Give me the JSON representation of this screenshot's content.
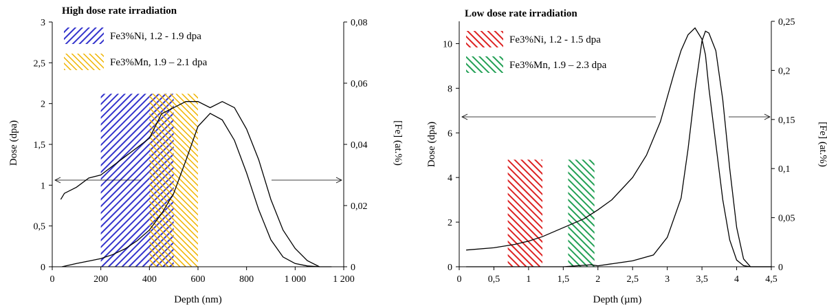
{
  "chart_data": [
    {
      "type": "line",
      "title": "High dose rate irradiation",
      "xlabel": "Depth (nm)",
      "ylabel": "Dose (dpa)",
      "y2label": "[Fe] (at.%)",
      "xlim": [
        0,
        1200
      ],
      "ylim": [
        0,
        3
      ],
      "y2lim": [
        0,
        0.08
      ],
      "xticks": [
        0,
        200,
        400,
        600,
        800,
        1000,
        1200
      ],
      "xtick_labels": [
        "0",
        "200",
        "400",
        "600",
        "800",
        "1 000",
        "1 200"
      ],
      "yticks": [
        0,
        0.5,
        1,
        1.5,
        2,
        2.5,
        3
      ],
      "ytick_labels": [
        "0",
        "0,5",
        "1",
        "1,5",
        "2",
        "2,5",
        "3"
      ],
      "y2ticks": [
        0,
        0.02,
        0.04,
        0.06,
        0.08
      ],
      "y2tick_labels": [
        "0",
        "0,02",
        "0,04",
        "0,06",
        "0,08"
      ],
      "legend": [
        {
          "label": "Fe3%Ni, 1.2 - 1.9 dpa",
          "color": "#3333cc"
        },
        {
          "label": "Fe3%Mn, 1.9 – 2.1 dpa",
          "color": "#f0b400"
        }
      ],
      "bands": [
        {
          "name": "Fe3%Ni, 1.2 - 1.9 dpa",
          "x": [
            200,
            500
          ],
          "y": [
            0,
            2.12
          ],
          "color": "#3333cc"
        },
        {
          "name": "Fe3%Mn, 1.9 – 2.1 dpa",
          "x": [
            400,
            600
          ],
          "y": [
            0,
            2.12
          ],
          "color": "#f0b400"
        }
      ],
      "series": [
        {
          "axis": "left",
          "x": [
            40,
            100,
            150,
            200,
            250,
            300,
            350,
            400,
            450,
            500,
            550,
            600,
            650,
            700,
            750,
            800,
            850,
            900,
            950,
            1000,
            1050,
            1100,
            1150
          ],
          "y": [
            0.0,
            0.04,
            0.07,
            0.1,
            0.15,
            0.22,
            0.32,
            0.45,
            0.65,
            0.9,
            1.3,
            1.72,
            1.88,
            1.8,
            1.55,
            1.15,
            0.7,
            0.33,
            0.12,
            0.04,
            0.01,
            0.0,
            0.0
          ]
        },
        {
          "axis": "right",
          "x": [
            35,
            50,
            100,
            150,
            200,
            250,
            300,
            350,
            400,
            450,
            500,
            550,
            600,
            650,
            700,
            750,
            800,
            850,
            900,
            950,
            1000,
            1050,
            1100
          ],
          "y": [
            0.022,
            0.024,
            0.026,
            0.029,
            0.03,
            0.033,
            0.036,
            0.039,
            0.042,
            0.05,
            0.052,
            0.054,
            0.054,
            0.052,
            0.054,
            0.052,
            0.045,
            0.035,
            0.022,
            0.012,
            0.006,
            0.002,
            0.0
          ]
        }
      ]
    },
    {
      "type": "line",
      "title": "Low dose rate irradiation",
      "xlabel": "Depth (µm)",
      "ylabel": "Dose (dpa)",
      "y2label": "[Fe] (at.%)",
      "xlim": [
        0,
        4.5
      ],
      "ylim": [
        0,
        11
      ],
      "y2lim": [
        0,
        0.25
      ],
      "xticks": [
        0,
        0.5,
        1,
        1.5,
        2,
        2.5,
        3,
        3.5,
        4,
        4.5
      ],
      "xtick_labels": [
        "0",
        "0,5",
        "1",
        "1,5",
        "2",
        "2,5",
        "3",
        "3,5",
        "4",
        "4,5"
      ],
      "yticks": [
        0,
        2,
        4,
        6,
        8,
        10
      ],
      "ytick_labels": [
        "0",
        "2",
        "4",
        "6",
        "8",
        "10"
      ],
      "y2ticks": [
        0,
        0.05,
        0.1,
        0.15,
        0.2,
        0.25
      ],
      "y2tick_labels": [
        "0",
        "0,05",
        "0,1",
        "0,15",
        "0,2",
        "0,25"
      ],
      "legend": [
        {
          "label": "Fe3%Ni, 1.2 - 1.5 dpa",
          "color": "#dd2222"
        },
        {
          "label": "Fe3%Mn, 1.9 – 2.3 dpa",
          "color": "#22a055"
        }
      ],
      "bands": [
        {
          "name": "Fe3%Ni, 1.2 - 1.5 dpa",
          "x": [
            0.7,
            1.2
          ],
          "y": [
            0,
            4.8
          ],
          "color": "#dd2222"
        },
        {
          "name": "Fe3%Mn, 1.9 – 2.3 dpa",
          "x": [
            1.57,
            1.95
          ],
          "y": [
            0,
            4.8
          ],
          "color": "#22a055"
        }
      ],
      "series": [
        {
          "axis": "left",
          "x": [
            0.1,
            0.5,
            0.8,
            1.0,
            1.2,
            1.5,
            1.8,
            2.0,
            2.2,
            2.5,
            2.7,
            2.9,
            3.0,
            3.1,
            3.2,
            3.3,
            3.4,
            3.5,
            3.55,
            3.6,
            3.7,
            3.8,
            3.9,
            4.0,
            4.1,
            4.2,
            4.5
          ],
          "y": [
            0.75,
            0.85,
            1.0,
            1.15,
            1.35,
            1.75,
            2.15,
            2.55,
            3.0,
            4.0,
            5.0,
            6.5,
            7.6,
            8.7,
            9.7,
            10.4,
            10.7,
            10.2,
            9.5,
            8.0,
            5.5,
            3.0,
            1.2,
            0.3,
            0.05,
            0.0,
            0.0
          ]
        },
        {
          "axis": "right",
          "x": [
            0.1,
            1.0,
            1.5,
            1.9,
            2.0,
            2.5,
            2.8,
            3.0,
            3.2,
            3.3,
            3.4,
            3.5,
            3.55,
            3.6,
            3.7,
            3.8,
            3.9,
            4.0,
            4.1,
            4.2,
            4.5
          ],
          "y": [
            0.0,
            0.0,
            0.0,
            0.002,
            0.001,
            0.006,
            0.012,
            0.03,
            0.07,
            0.12,
            0.18,
            0.23,
            0.24,
            0.238,
            0.22,
            0.17,
            0.1,
            0.04,
            0.008,
            0.0,
            0.0
          ]
        }
      ]
    }
  ]
}
